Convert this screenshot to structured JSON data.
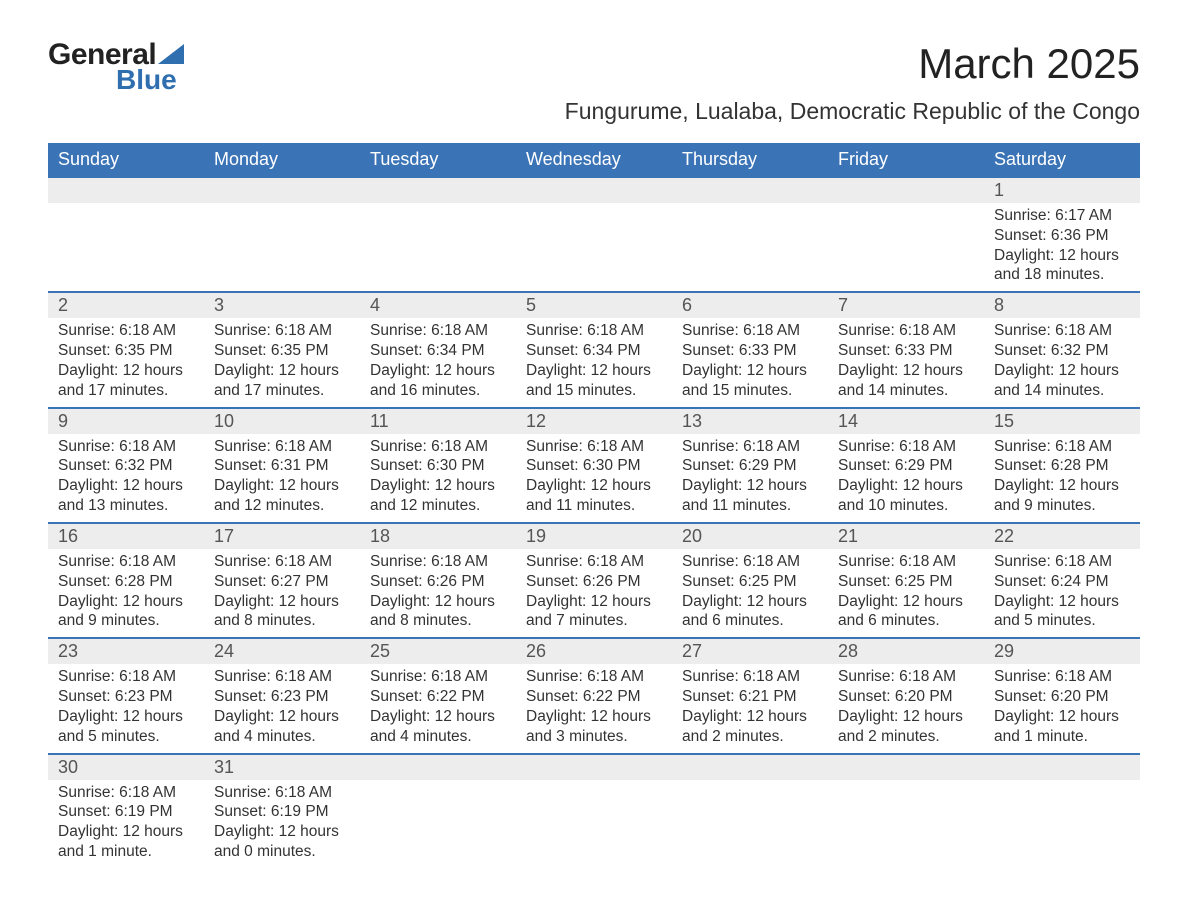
{
  "logo": {
    "text1": "General",
    "text2": "Blue",
    "brand_color": "#2f6fb0"
  },
  "title": "March 2025",
  "location": "Fungurume, Lualaba, Democratic Republic of the Congo",
  "weekdays": [
    "Sunday",
    "Monday",
    "Tuesday",
    "Wednesday",
    "Thursday",
    "Friday",
    "Saturday"
  ],
  "colors": {
    "header_bg": "#3a73b6",
    "header_text": "#ffffff",
    "daynum_bg": "#ededed",
    "border": "#3a73b6",
    "body_text": "#333333"
  },
  "typography": {
    "title_fontsize": 42,
    "location_fontsize": 23,
    "weekday_fontsize": 18,
    "daynum_fontsize": 18,
    "data_fontsize": 15.5
  },
  "layout": {
    "columns": 7,
    "rows": 6,
    "first_weekday_index": 6
  },
  "grid": [
    [
      null,
      null,
      null,
      null,
      null,
      null,
      {
        "n": "1",
        "sunrise": "Sunrise: 6:17 AM",
        "sunset": "Sunset: 6:36 PM",
        "daylight": "Daylight: 12 hours and 18 minutes."
      }
    ],
    [
      {
        "n": "2",
        "sunrise": "Sunrise: 6:18 AM",
        "sunset": "Sunset: 6:35 PM",
        "daylight": "Daylight: 12 hours and 17 minutes."
      },
      {
        "n": "3",
        "sunrise": "Sunrise: 6:18 AM",
        "sunset": "Sunset: 6:35 PM",
        "daylight": "Daylight: 12 hours and 17 minutes."
      },
      {
        "n": "4",
        "sunrise": "Sunrise: 6:18 AM",
        "sunset": "Sunset: 6:34 PM",
        "daylight": "Daylight: 12 hours and 16 minutes."
      },
      {
        "n": "5",
        "sunrise": "Sunrise: 6:18 AM",
        "sunset": "Sunset: 6:34 PM",
        "daylight": "Daylight: 12 hours and 15 minutes."
      },
      {
        "n": "6",
        "sunrise": "Sunrise: 6:18 AM",
        "sunset": "Sunset: 6:33 PM",
        "daylight": "Daylight: 12 hours and 15 minutes."
      },
      {
        "n": "7",
        "sunrise": "Sunrise: 6:18 AM",
        "sunset": "Sunset: 6:33 PM",
        "daylight": "Daylight: 12 hours and 14 minutes."
      },
      {
        "n": "8",
        "sunrise": "Sunrise: 6:18 AM",
        "sunset": "Sunset: 6:32 PM",
        "daylight": "Daylight: 12 hours and 14 minutes."
      }
    ],
    [
      {
        "n": "9",
        "sunrise": "Sunrise: 6:18 AM",
        "sunset": "Sunset: 6:32 PM",
        "daylight": "Daylight: 12 hours and 13 minutes."
      },
      {
        "n": "10",
        "sunrise": "Sunrise: 6:18 AM",
        "sunset": "Sunset: 6:31 PM",
        "daylight": "Daylight: 12 hours and 12 minutes."
      },
      {
        "n": "11",
        "sunrise": "Sunrise: 6:18 AM",
        "sunset": "Sunset: 6:30 PM",
        "daylight": "Daylight: 12 hours and 12 minutes."
      },
      {
        "n": "12",
        "sunrise": "Sunrise: 6:18 AM",
        "sunset": "Sunset: 6:30 PM",
        "daylight": "Daylight: 12 hours and 11 minutes."
      },
      {
        "n": "13",
        "sunrise": "Sunrise: 6:18 AM",
        "sunset": "Sunset: 6:29 PM",
        "daylight": "Daylight: 12 hours and 11 minutes."
      },
      {
        "n": "14",
        "sunrise": "Sunrise: 6:18 AM",
        "sunset": "Sunset: 6:29 PM",
        "daylight": "Daylight: 12 hours and 10 minutes."
      },
      {
        "n": "15",
        "sunrise": "Sunrise: 6:18 AM",
        "sunset": "Sunset: 6:28 PM",
        "daylight": "Daylight: 12 hours and 9 minutes."
      }
    ],
    [
      {
        "n": "16",
        "sunrise": "Sunrise: 6:18 AM",
        "sunset": "Sunset: 6:28 PM",
        "daylight": "Daylight: 12 hours and 9 minutes."
      },
      {
        "n": "17",
        "sunrise": "Sunrise: 6:18 AM",
        "sunset": "Sunset: 6:27 PM",
        "daylight": "Daylight: 12 hours and 8 minutes."
      },
      {
        "n": "18",
        "sunrise": "Sunrise: 6:18 AM",
        "sunset": "Sunset: 6:26 PM",
        "daylight": "Daylight: 12 hours and 8 minutes."
      },
      {
        "n": "19",
        "sunrise": "Sunrise: 6:18 AM",
        "sunset": "Sunset: 6:26 PM",
        "daylight": "Daylight: 12 hours and 7 minutes."
      },
      {
        "n": "20",
        "sunrise": "Sunrise: 6:18 AM",
        "sunset": "Sunset: 6:25 PM",
        "daylight": "Daylight: 12 hours and 6 minutes."
      },
      {
        "n": "21",
        "sunrise": "Sunrise: 6:18 AM",
        "sunset": "Sunset: 6:25 PM",
        "daylight": "Daylight: 12 hours and 6 minutes."
      },
      {
        "n": "22",
        "sunrise": "Sunrise: 6:18 AM",
        "sunset": "Sunset: 6:24 PM",
        "daylight": "Daylight: 12 hours and 5 minutes."
      }
    ],
    [
      {
        "n": "23",
        "sunrise": "Sunrise: 6:18 AM",
        "sunset": "Sunset: 6:23 PM",
        "daylight": "Daylight: 12 hours and 5 minutes."
      },
      {
        "n": "24",
        "sunrise": "Sunrise: 6:18 AM",
        "sunset": "Sunset: 6:23 PM",
        "daylight": "Daylight: 12 hours and 4 minutes."
      },
      {
        "n": "25",
        "sunrise": "Sunrise: 6:18 AM",
        "sunset": "Sunset: 6:22 PM",
        "daylight": "Daylight: 12 hours and 4 minutes."
      },
      {
        "n": "26",
        "sunrise": "Sunrise: 6:18 AM",
        "sunset": "Sunset: 6:22 PM",
        "daylight": "Daylight: 12 hours and 3 minutes."
      },
      {
        "n": "27",
        "sunrise": "Sunrise: 6:18 AM",
        "sunset": "Sunset: 6:21 PM",
        "daylight": "Daylight: 12 hours and 2 minutes."
      },
      {
        "n": "28",
        "sunrise": "Sunrise: 6:18 AM",
        "sunset": "Sunset: 6:20 PM",
        "daylight": "Daylight: 12 hours and 2 minutes."
      },
      {
        "n": "29",
        "sunrise": "Sunrise: 6:18 AM",
        "sunset": "Sunset: 6:20 PM",
        "daylight": "Daylight: 12 hours and 1 minute."
      }
    ],
    [
      {
        "n": "30",
        "sunrise": "Sunrise: 6:18 AM",
        "sunset": "Sunset: 6:19 PM",
        "daylight": "Daylight: 12 hours and 1 minute."
      },
      {
        "n": "31",
        "sunrise": "Sunrise: 6:18 AM",
        "sunset": "Sunset: 6:19 PM",
        "daylight": "Daylight: 12 hours and 0 minutes."
      },
      null,
      null,
      null,
      null,
      null
    ]
  ]
}
